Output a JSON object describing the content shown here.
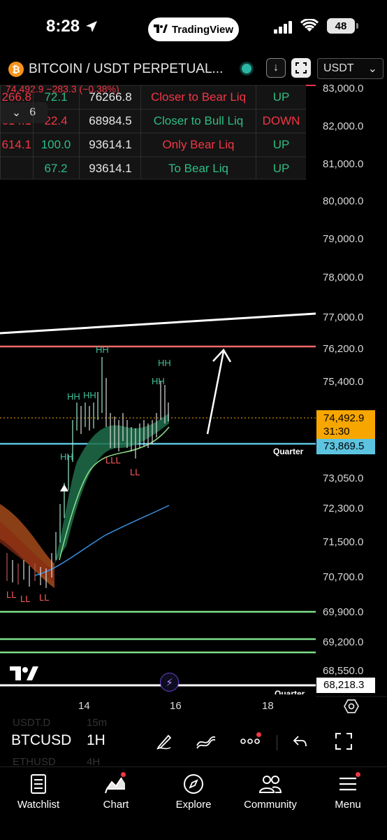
{
  "status_bar": {
    "time": "8:28",
    "app_pill": "TradingView",
    "battery": "48"
  },
  "symbol_header": {
    "title": "BITCOIN / USDT PERPETUAL...",
    "currency": "USDT",
    "last_price": "74,492.9",
    "change": "−283.3",
    "change_pct": "(−0.38%)",
    "collapsed_count": "6"
  },
  "liq_table": {
    "rows": [
      {
        "price": "266.8",
        "score": "72.1",
        "target": "76266.8",
        "reason": "Closer to Bear Liq",
        "bias": "UP",
        "reason_color": "#f23645",
        "bias_color": "#2ebd85",
        "score_color": "#2ebd85"
      },
      {
        "price": "614.1",
        "score": "22.4",
        "target": "68984.5",
        "reason": "Closer to Bull Liq",
        "bias": "DOWN",
        "reason_color": "#2ebd85",
        "bias_color": "#f23645",
        "score_color": "#f23645"
      },
      {
        "price": "614.1",
        "score": "100.0",
        "target": "93614.1",
        "reason": "Only Bear Liq",
        "bias": "UP",
        "reason_color": "#f23645",
        "bias_color": "#2ebd85",
        "score_color": "#2ebd85"
      },
      {
        "price": "",
        "score": "67.2",
        "target": "93614.1",
        "reason": "To Bear Liq",
        "bias": "UP",
        "reason_color": "#2ebd85",
        "bias_color": "#2ebd85",
        "score_color": "#2ebd85"
      }
    ]
  },
  "price_scale": {
    "labels": [
      "83,000.0",
      "82,000.0",
      "81,000.0",
      "80,000.0",
      "79,000.0",
      "78,000.0",
      "77,000.0",
      "76,200.0",
      "75,400.0",
      "73,050.0",
      "72,300.0",
      "71,500.0",
      "70,700.0",
      "69,900.0",
      "69,200.0",
      "68,550.0"
    ],
    "current_price": "74,492.9",
    "countdown": "31:30",
    "quarter_price": "73,869.5",
    "quarter_label": "Quarter",
    "low_price": "68,218.3",
    "quarter_label_2": "Quarter"
  },
  "markers": {
    "hh": "HH",
    "ll": "LL",
    "lll": "LLL"
  },
  "time_axis": {
    "ticks": [
      "14",
      "16",
      "18"
    ]
  },
  "toolbar": {
    "symbol": "BTCUSD",
    "interval": "1H",
    "ghost_symbol_1": "USDT.D",
    "ghost_interval_1": "15m",
    "ghost_symbol_2": "ETHUSD",
    "ghost_interval_2": "4H"
  },
  "nav": {
    "watchlist": "Watchlist",
    "chart": "Chart",
    "explore": "Explore",
    "community": "Community",
    "menu": "Menu"
  },
  "colors": {
    "bull": "#2ebd85",
    "bear": "#f23645",
    "current_price": "#f7a600",
    "quarter_line": "#5cc4e0",
    "accent_live": "#2bb5a5"
  }
}
